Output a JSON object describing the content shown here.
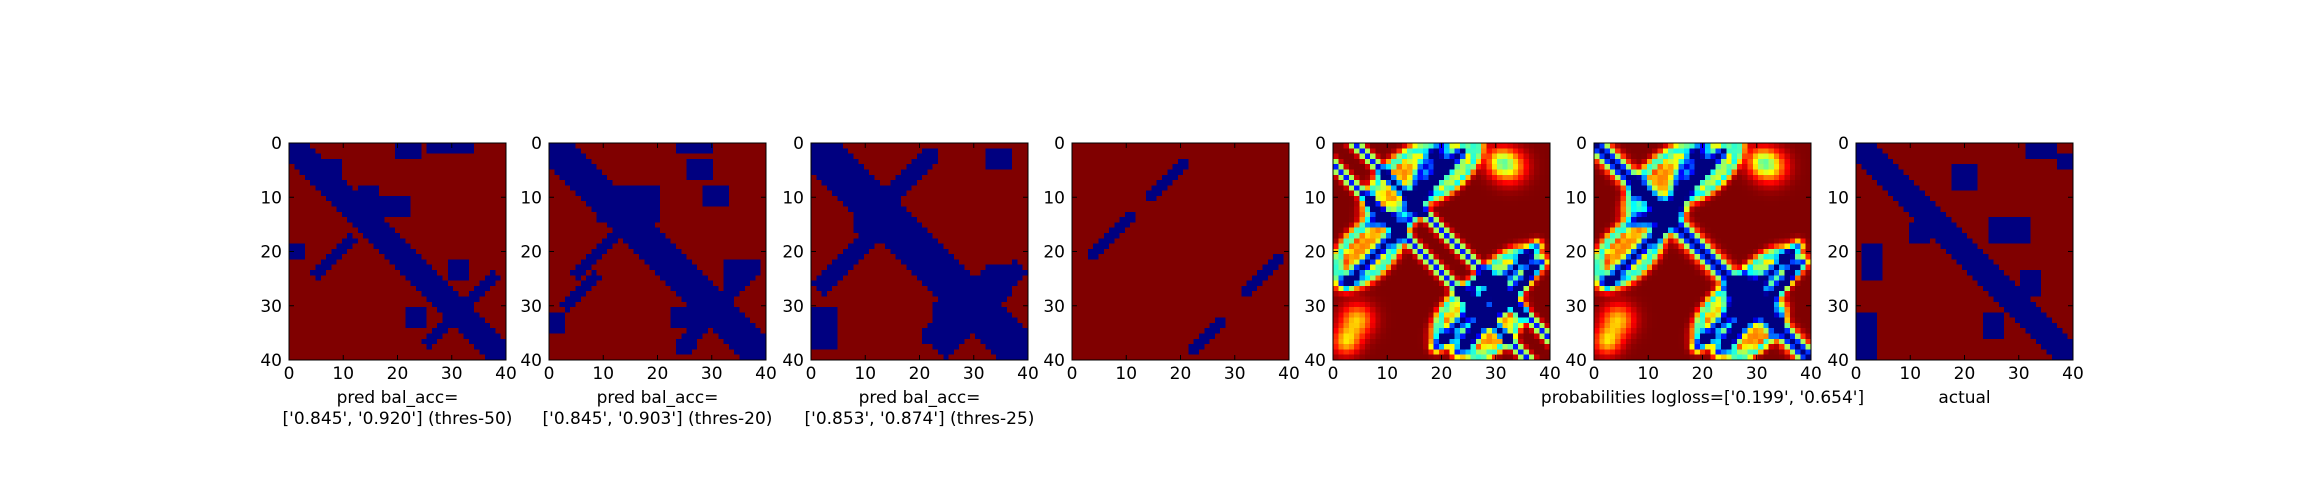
{
  "figure": {
    "background": "#ffffff",
    "colormap": "jet"
  },
  "chart_data": [
    {
      "type": "heatmap",
      "size": 41,
      "xlim": [
        0,
        40
      ],
      "ylim": [
        40,
        0
      ],
      "xticks": [
        "0",
        "10",
        "20",
        "30",
        "40"
      ],
      "yticks": [
        "0",
        "10",
        "20",
        "30",
        "40"
      ],
      "xlabel_lines": [
        "pred bal_acc=",
        "['0.845', '0.920'] (thres-50)"
      ],
      "values_desc": "binary prediction: 0 (blue) on contact regions, 1 (dark red) elsewhere",
      "blobs": [
        {
          "kind": "diag",
          "from": 0,
          "to": 40,
          "width": 2.6
        },
        {
          "kind": "rect",
          "x": [
            5,
            9
          ],
          "y": [
            3,
            6
          ]
        },
        {
          "kind": "rect",
          "x": [
            20,
            24
          ],
          "y": [
            0,
            2
          ]
        },
        {
          "kind": "rect",
          "x": [
            26,
            34
          ],
          "y": [
            0,
            1
          ]
        },
        {
          "kind": "line",
          "p1": [
            5,
            24
          ],
          "p2": [
            11,
            18
          ],
          "w": 1.1
        },
        {
          "kind": "rect",
          "x": [
            0,
            2
          ],
          "y": [
            19,
            21
          ]
        },
        {
          "kind": "rect",
          "x": [
            30,
            33
          ],
          "y": [
            22,
            25
          ]
        },
        {
          "kind": "rect",
          "x": [
            22,
            25
          ],
          "y": [
            31,
            34
          ]
        },
        {
          "kind": "line",
          "p1": [
            26,
            37
          ],
          "p2": [
            38,
            25
          ],
          "w": 1.0
        },
        {
          "kind": "rect",
          "x": [
            12,
            22
          ],
          "y": [
            10,
            13
          ]
        },
        {
          "kind": "rect",
          "x": [
            13,
            16
          ],
          "y": [
            8,
            16
          ]
        }
      ]
    },
    {
      "type": "heatmap",
      "size": 41,
      "xlim": [
        0,
        40
      ],
      "ylim": [
        40,
        0
      ],
      "xticks": [
        "0",
        "10",
        "20",
        "30",
        "40"
      ],
      "yticks": [
        "0",
        "10",
        "20",
        "30",
        "40"
      ],
      "xlabel_lines": [
        "pred bal_acc=",
        "['0.845', '0.903'] (thres-20)"
      ],
      "values_desc": "binary prediction: 0 (blue) on contact regions, 1 (dark red) elsewhere",
      "blobs": [
        {
          "kind": "diag",
          "from": 0,
          "to": 40,
          "width": 3.4
        },
        {
          "kind": "rect",
          "x": [
            9,
            20
          ],
          "y": [
            8,
            14
          ]
        },
        {
          "kind": "rect",
          "x": [
            24,
            30
          ],
          "y": [
            0,
            1
          ]
        },
        {
          "kind": "line",
          "p1": [
            3,
            30
          ],
          "p2": [
            8,
            25
          ],
          "w": 1.0
        },
        {
          "kind": "line",
          "p1": [
            5,
            24
          ],
          "p2": [
            12,
            17
          ],
          "w": 1.4
        },
        {
          "kind": "rect",
          "x": [
            26,
            30
          ],
          "y": [
            3,
            6
          ]
        },
        {
          "kind": "rect",
          "x": [
            29,
            33
          ],
          "y": [
            8,
            11
          ]
        },
        {
          "kind": "rect",
          "x": [
            0,
            2
          ],
          "y": [
            32,
            35
          ]
        },
        {
          "kind": "rect",
          "x": [
            23,
            27
          ],
          "y": [
            31,
            34
          ]
        },
        {
          "kind": "line",
          "p1": [
            25,
            38
          ],
          "p2": [
            38,
            23
          ],
          "w": 1.6
        },
        {
          "kind": "rect",
          "x": [
            33,
            36
          ],
          "y": [
            22,
            26
          ]
        }
      ]
    },
    {
      "type": "heatmap",
      "size": 41,
      "xlim": [
        0,
        40
      ],
      "ylim": [
        40,
        0
      ],
      "xticks": [
        "0",
        "10",
        "20",
        "30",
        "40"
      ],
      "yticks": [
        "0",
        "10",
        "20",
        "30",
        "40"
      ],
      "xlabel_lines": [
        "pred bal_acc=",
        "['0.853', '0.874'] (thres-25)"
      ],
      "values_desc": "binary prediction: 0 (blue) on contact regions, 1 (dark red) elsewhere",
      "blobs": [
        {
          "kind": "diag",
          "from": 0,
          "to": 40,
          "width": 4.0
        },
        {
          "kind": "rect",
          "x": [
            8,
            15
          ],
          "y": [
            8,
            16
          ]
        },
        {
          "kind": "line",
          "p1": [
            2,
            26
          ],
          "p2": [
            12,
            16
          ],
          "w": 2.0
        },
        {
          "kind": "line",
          "p1": [
            14,
            10
          ],
          "p2": [
            22,
            2
          ],
          "w": 1.8
        },
        {
          "kind": "rect",
          "x": [
            33,
            37
          ],
          "y": [
            1,
            4
          ]
        },
        {
          "kind": "rect",
          "x": [
            0,
            4
          ],
          "y": [
            31,
            38
          ]
        },
        {
          "kind": "rect",
          "x": [
            23,
            28
          ],
          "y": [
            30,
            34
          ]
        },
        {
          "kind": "line",
          "p1": [
            25,
            38
          ],
          "p2": [
            38,
            24
          ],
          "w": 2.0
        },
        {
          "kind": "line",
          "p1": [
            22,
            36
          ],
          "p2": [
            34,
            24
          ],
          "w": 1.6
        },
        {
          "kind": "rect",
          "x": [
            33,
            36
          ],
          "y": [
            23,
            27
          ]
        }
      ]
    },
    {
      "type": "heatmap",
      "size": 41,
      "xlim": [
        0,
        40
      ],
      "ylim": [
        40,
        0
      ],
      "xticks": [
        "0",
        "10",
        "20",
        "30",
        "40"
      ],
      "yticks": [
        "0",
        "10",
        "20",
        "30",
        "40"
      ],
      "xlabel_lines": [],
      "values_desc": "binary map: mostly dark red with thin blue diagonal segments",
      "blobs": [
        {
          "kind": "line",
          "p1": [
            3,
            21
          ],
          "p2": [
            11,
            13
          ],
          "w": 0.9
        },
        {
          "kind": "line",
          "p1": [
            14,
            10
          ],
          "p2": [
            21,
            3
          ],
          "w": 0.9
        },
        {
          "kind": "line",
          "p1": [
            22,
            39
          ],
          "p2": [
            28,
            33
          ],
          "w": 0.9
        },
        {
          "kind": "line",
          "p1": [
            32,
            28
          ],
          "p2": [
            39,
            21
          ],
          "w": 0.9
        }
      ]
    },
    {
      "type": "heatmap",
      "size": 41,
      "xlim": [
        0,
        40
      ],
      "ylim": [
        40,
        0
      ],
      "xticks": [
        "0",
        "10",
        "20",
        "30",
        "40"
      ],
      "yticks": [
        "0",
        "10",
        "20",
        "30",
        "40"
      ],
      "xlabel_lines": [],
      "values_desc": "continuous probability map (jet colormap), low values blue, high dark red",
      "mode": "prob-a"
    },
    {
      "type": "heatmap",
      "size": 41,
      "xlim": [
        0,
        40
      ],
      "ylim": [
        40,
        0
      ],
      "xticks": [
        "0",
        "10",
        "20",
        "30",
        "40"
      ],
      "yticks": [
        "0",
        "10",
        "20",
        "30",
        "40"
      ],
      "xlabel_lines": [
        "probabilities logloss=['0.199', '0.654']"
      ],
      "values_desc": "continuous probability map (jet colormap) with strong blue main diagonal",
      "mode": "prob-b"
    },
    {
      "type": "heatmap",
      "size": 41,
      "xlim": [
        0,
        40
      ],
      "ylim": [
        40,
        0
      ],
      "xticks": [
        "0",
        "10",
        "20",
        "30",
        "40"
      ],
      "yticks": [
        "0",
        "10",
        "20",
        "30",
        "40"
      ],
      "xlabel_lines": [
        "actual"
      ],
      "values_desc": "ground-truth binary contact map: blue on contacts, dark red elsewhere",
      "blobs": [
        {
          "kind": "diag",
          "from": 0,
          "to": 40,
          "width": 2.4
        },
        {
          "kind": "rect",
          "x": [
            32,
            37
          ],
          "y": [
            0,
            2
          ]
        },
        {
          "kind": "rect",
          "x": [
            38,
            40
          ],
          "y": [
            2,
            4
          ]
        },
        {
          "kind": "rect",
          "x": [
            18,
            22
          ],
          "y": [
            4,
            8
          ]
        },
        {
          "kind": "rect",
          "x": [
            10,
            13
          ],
          "y": [
            15,
            18
          ]
        },
        {
          "kind": "rect",
          "x": [
            1,
            4
          ],
          "y": [
            19,
            25
          ]
        },
        {
          "kind": "rect",
          "x": [
            0,
            3
          ],
          "y": [
            32,
            40
          ]
        },
        {
          "kind": "rect",
          "x": [
            24,
            27
          ],
          "y": [
            32,
            36
          ]
        },
        {
          "kind": "rect",
          "x": [
            31,
            34
          ],
          "y": [
            24,
            28
          ]
        },
        {
          "kind": "rect",
          "x": [
            25,
            32
          ],
          "y": [
            14,
            18
          ]
        }
      ]
    }
  ]
}
